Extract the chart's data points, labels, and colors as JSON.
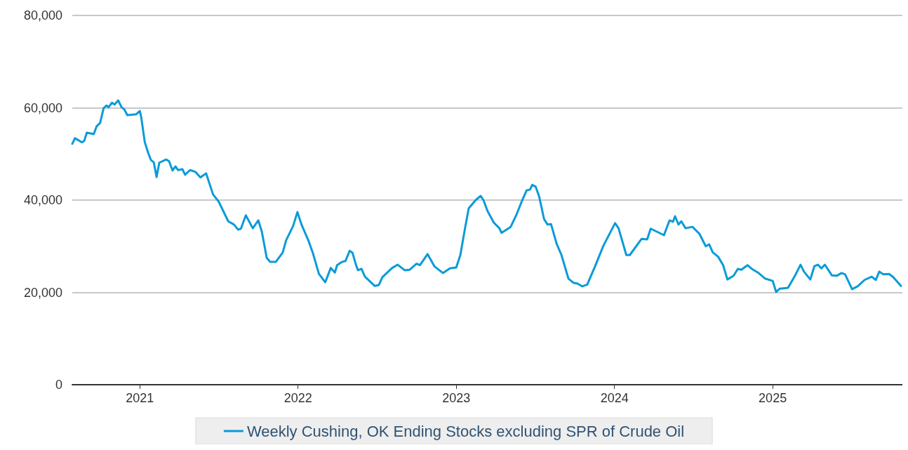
{
  "chart_data": {
    "type": "line",
    "xlim": [
      2020.573,
      2025.82
    ],
    "xticks": [
      2021,
      2022,
      2023,
      2024,
      2025
    ],
    "ylim": [
      0,
      80000
    ],
    "yticks": [
      0,
      {
        "value": 20000,
        "label": "20,000"
      },
      {
        "value": 40000,
        "label": "40,000"
      },
      {
        "value": 60000,
        "label": "60,000"
      },
      {
        "value": 80000,
        "label": "80,000"
      }
    ],
    "grid": "y",
    "legend": "bottom",
    "marker": "none",
    "line_style": "solid",
    "series": [
      {
        "name": "Weekly Cushing, OK Ending Stocks excluding SPR of Crude Oil",
        "color": "#0a9bd8",
        "x": [
          2020.573,
          2020.59,
          2020.634,
          2020.648,
          2020.665,
          2020.709,
          2020.727,
          2020.749,
          2020.771,
          2020.789,
          2020.802,
          2020.824,
          2020.841,
          2020.863,
          2020.885,
          2020.903,
          2020.921,
          2020.978,
          2021.0,
          2021.009,
          2021.031,
          2021.053,
          2021.07,
          2021.088,
          2021.106,
          2021.123,
          2021.167,
          2021.185,
          2021.207,
          2021.225,
          2021.242,
          2021.269,
          2021.286,
          2021.317,
          2021.352,
          2021.383,
          2021.419,
          2021.463,
          2021.498,
          2021.559,
          2021.595,
          2021.621,
          2021.639,
          2021.67,
          2021.714,
          2021.749,
          2021.771,
          2021.802,
          2021.824,
          2021.859,
          2021.903,
          2021.925,
          2021.969,
          2021.996,
          2022.022,
          2022.066,
          2022.093,
          2022.132,
          2022.172,
          2022.207,
          2022.233,
          2022.247,
          2022.278,
          2022.3,
          2022.326,
          2022.344,
          2022.366,
          2022.379,
          2022.401,
          2022.423,
          2022.485,
          2022.511,
          2022.533,
          2022.595,
          2022.63,
          2022.674,
          2022.705,
          2022.749,
          2022.771,
          2022.819,
          2022.863,
          2022.916,
          2022.96,
          2023.0,
          2023.026,
          2023.057,
          2023.079,
          2023.123,
          2023.154,
          2023.172,
          2023.198,
          2023.238,
          2023.273,
          2023.286,
          2023.344,
          2023.379,
          2023.414,
          2023.445,
          2023.467,
          2023.48,
          2023.502,
          2023.524,
          2023.555,
          2023.577,
          2023.599,
          2023.634,
          2023.665,
          2023.709,
          2023.74,
          2023.767,
          2023.797,
          2023.828,
          2023.877,
          2023.93,
          2024.004,
          2024.026,
          2024.075,
          2024.097,
          2024.172,
          2024.207,
          2024.229,
          2024.295,
          2024.313,
          2024.348,
          2024.37,
          2024.383,
          2024.405,
          2024.423,
          2024.449,
          2024.493,
          2024.537,
          2024.577,
          2024.599,
          2024.621,
          2024.656,
          2024.687,
          2024.714,
          2024.753,
          2024.78,
          2024.802,
          2024.841,
          2024.868,
          2024.907,
          2024.952,
          2025.0,
          2025.022,
          2025.044,
          2025.097,
          2025.141,
          2025.176,
          2025.198,
          2025.238,
          2025.264,
          2025.286,
          2025.308,
          2025.33,
          2025.374,
          2025.405,
          2025.436,
          2025.458,
          2025.502,
          2025.537,
          2025.581,
          2025.626,
          2025.652,
          2025.674,
          2025.7,
          2025.736,
          2025.762,
          2025.811
        ],
        "values": [
          52200,
          53400,
          52500,
          52800,
          54600,
          54300,
          56000,
          56700,
          59900,
          60500,
          60100,
          61100,
          60700,
          61600,
          60100,
          59600,
          58400,
          58600,
          59300,
          57900,
          52600,
          50200,
          48700,
          48200,
          45000,
          48100,
          48800,
          48400,
          46400,
          47300,
          46500,
          46700,
          45500,
          46500,
          46100,
          44900,
          45800,
          41200,
          39700,
          35400,
          34700,
          33600,
          33800,
          36700,
          33900,
          35600,
          33200,
          27500,
          26600,
          26600,
          28600,
          31300,
          34400,
          37400,
          34700,
          31200,
          28600,
          24000,
          22200,
          25300,
          24300,
          25900,
          26600,
          26800,
          29000,
          28600,
          26000,
          24800,
          25100,
          23400,
          21400,
          21600,
          23300,
          25300,
          26000,
          24800,
          24900,
          26200,
          25900,
          28300,
          25600,
          24200,
          25200,
          25400,
          28100,
          34200,
          38200,
          40000,
          40900,
          40000,
          37600,
          35100,
          33900,
          32900,
          34200,
          36700,
          39700,
          42100,
          42300,
          43300,
          42900,
          40800,
          35900,
          34700,
          34800,
          30600,
          28100,
          23000,
          22100,
          21900,
          21300,
          21700,
          25600,
          30100,
          35000,
          33900,
          28100,
          28100,
          31600,
          31500,
          33800,
          32700,
          32400,
          35600,
          35300,
          36500,
          34700,
          35400,
          33900,
          34200,
          32700,
          30000,
          30400,
          28700,
          27700,
          25900,
          22800,
          23600,
          25100,
          24900,
          25900,
          25100,
          24300,
          23000,
          22500,
          20100,
          20800,
          21000,
          23600,
          26000,
          24500,
          22800,
          25700,
          26000,
          25200,
          26000,
          23700,
          23600,
          24200,
          23900,
          20700,
          21300,
          22700,
          23400,
          22700,
          24500,
          23900,
          24000,
          23300,
          21400
        ]
      }
    ]
  }
}
